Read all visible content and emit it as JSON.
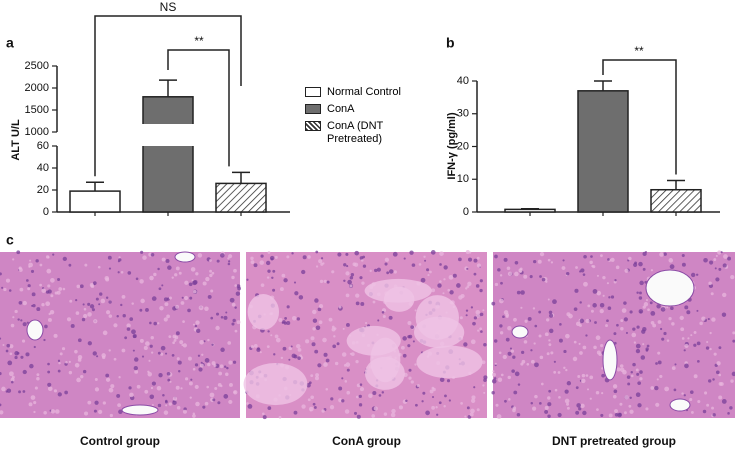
{
  "chart_data": [
    {
      "type": "bar",
      "panel_label": "a",
      "y_label": "ALT U/L",
      "y_segments": [
        {
          "ylim": [
            0,
            60
          ],
          "yticks": [
            0,
            20,
            40,
            60
          ]
        },
        {
          "ylim": [
            1000,
            2500
          ],
          "yticks": [
            1000,
            1500,
            2000,
            2500
          ]
        }
      ],
      "series": [
        {
          "name": "Normal Control",
          "color": "#ffffff",
          "hatched": false,
          "values": [
            19
          ],
          "errors": [
            8
          ]
        },
        {
          "name": "ConA",
          "color": "#6e6e6e",
          "hatched": false,
          "values": [
            1800
          ],
          "errors": [
            380
          ]
        },
        {
          "name": "ConA (DNT Pretreated)",
          "color": "#ffffff",
          "hatched": true,
          "values": [
            26
          ],
          "errors": [
            10
          ]
        }
      ],
      "annotations": [
        "NS",
        "**"
      ]
    },
    {
      "type": "bar",
      "panel_label": "b",
      "y_label": "IFN-γ (pg/ml)",
      "categories": [
        null,
        null,
        null
      ],
      "values": [
        0.8,
        37,
        6.8
      ],
      "errors": [
        0.2,
        3,
        2.8
      ],
      "colors": [
        "#ffffff",
        "#6e6e6e",
        "#ffffff"
      ],
      "hatched": [
        false,
        false,
        true
      ],
      "ylim": [
        0,
        40
      ],
      "yticks": [
        0,
        10,
        20,
        30,
        40
      ],
      "annotations": [
        "**"
      ]
    }
  ],
  "images": {
    "panel_label": "c",
    "captions": [
      "Control group",
      "ConA group",
      "DNT pretreated group"
    ]
  }
}
